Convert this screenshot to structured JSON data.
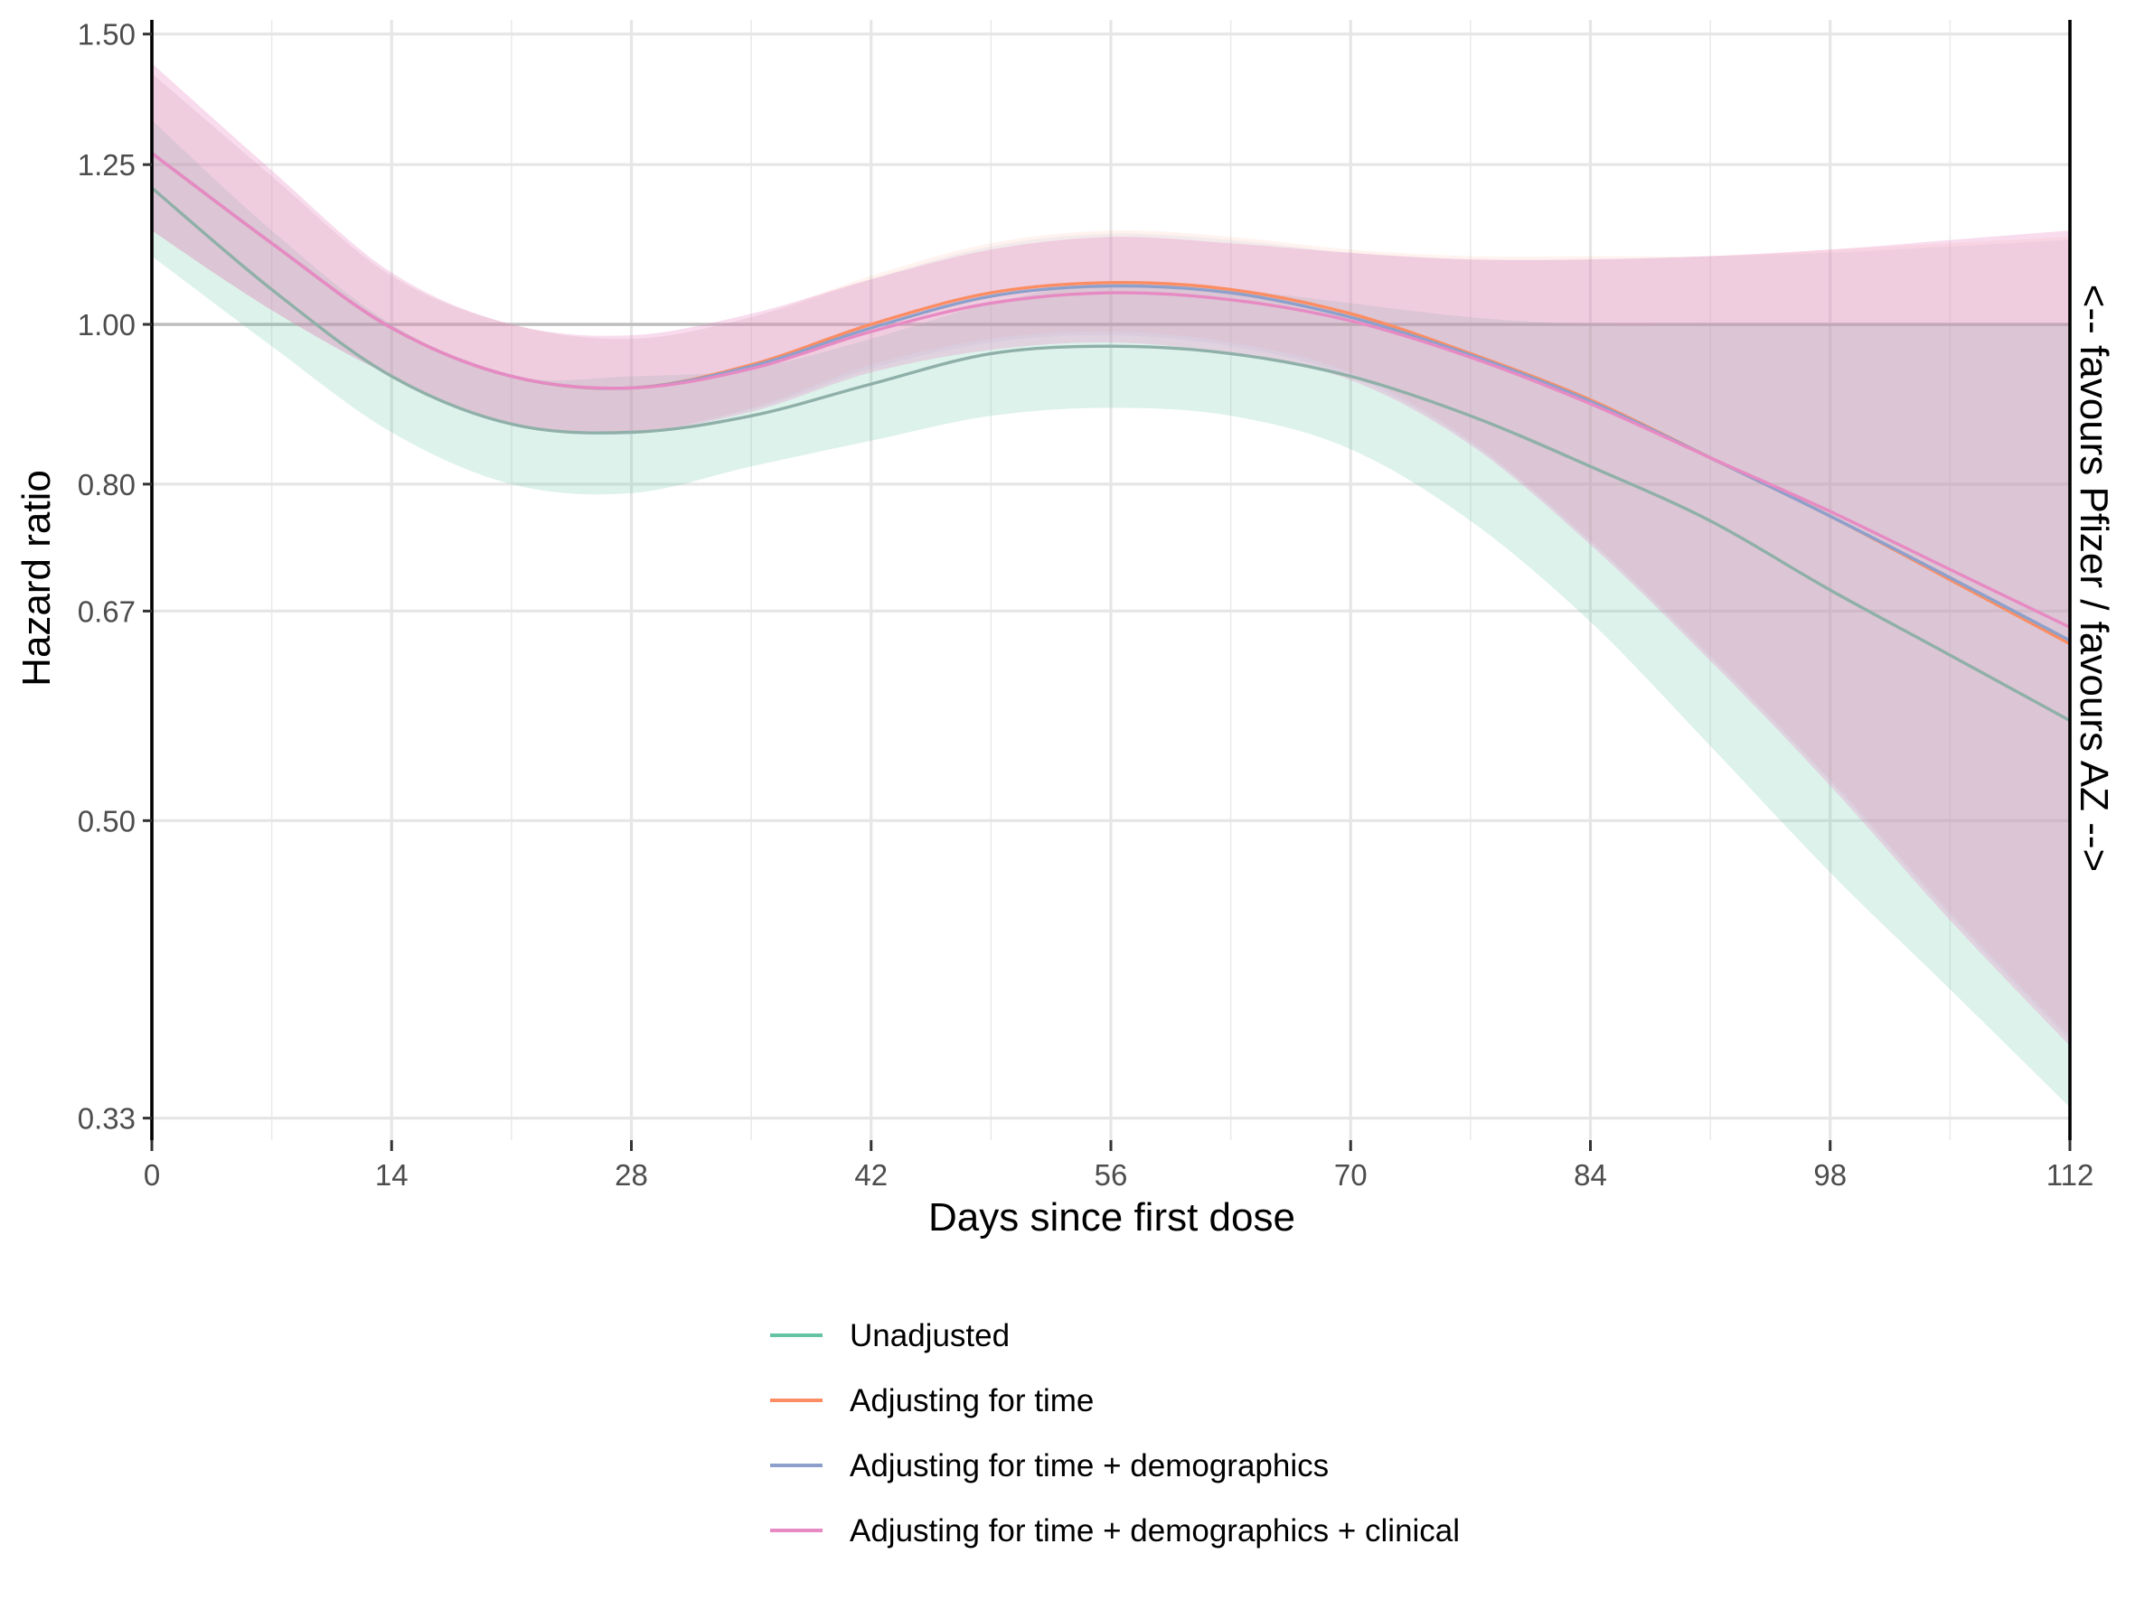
{
  "chart_data": {
    "type": "line",
    "title": "",
    "xlabel": "Days since first dose",
    "ylabel": "Hazard ratio",
    "secondary_label": "<--  favours Pfizer  /  favours AZ  -->",
    "x_scale": "linear",
    "y_scale": "log",
    "xlim": [
      0,
      112
    ],
    "ylim": [
      0.32,
      1.53
    ],
    "x_ticks": [
      0,
      14,
      28,
      42,
      56,
      70,
      84,
      98,
      112
    ],
    "x_tick_labels": [
      "0",
      "14",
      "28",
      "42",
      "56",
      "70",
      "84",
      "98",
      "112"
    ],
    "y_ticks": [
      0.33,
      0.5,
      0.67,
      0.8,
      1.0,
      1.25,
      1.5
    ],
    "y_tick_labels": [
      "0.33",
      "0.50",
      "0.67",
      "0.80",
      "1.00",
      "1.25",
      "1.50"
    ],
    "reference_line_y": 1.0,
    "grid": true,
    "legend_position": "bottom",
    "x": [
      0,
      7,
      14,
      21,
      28,
      35,
      42,
      49,
      56,
      63,
      70,
      77,
      84,
      91,
      98,
      105,
      112
    ],
    "series": [
      {
        "name": "Unadjusted",
        "color": "#66c2a5",
        "line_color": "#8fb0a8",
        "values": [
          1.21,
          1.05,
          0.93,
          0.87,
          0.86,
          0.88,
          0.92,
          0.96,
          0.97,
          0.96,
          0.93,
          0.88,
          0.82,
          0.76,
          0.69,
          0.63,
          0.575
        ],
        "lower": [
          1.1,
          0.97,
          0.86,
          0.8,
          0.79,
          0.82,
          0.85,
          0.88,
          0.89,
          0.88,
          0.84,
          0.76,
          0.66,
          0.555,
          0.465,
          0.395,
          0.335
        ],
        "upper": [
          1.33,
          1.14,
          1.0,
          0.93,
          0.93,
          0.94,
          0.98,
          1.03,
          1.06,
          1.05,
          1.03,
          1.01,
          1.0,
          1.0,
          1.0,
          1.0,
          1.0
        ]
      },
      {
        "name": "Adjusting for time",
        "color": "#fc8d62",
        "values": [
          1.27,
          1.12,
          0.995,
          0.93,
          0.915,
          0.945,
          1.0,
          1.045,
          1.06,
          1.05,
          1.015,
          0.96,
          0.9,
          0.83,
          0.765,
          0.7,
          0.64
        ],
        "lower": [
          1.14,
          1.02,
          0.93,
          0.87,
          0.86,
          0.89,
          0.945,
          0.98,
          0.99,
          0.975,
          0.935,
          0.85,
          0.74,
          0.63,
          0.53,
          0.44,
          0.37
        ],
        "upper": [
          1.42,
          1.23,
          1.07,
          1.0,
          0.98,
          1.01,
          1.07,
          1.12,
          1.14,
          1.13,
          1.11,
          1.1,
          1.1,
          1.1,
          1.11,
          1.12,
          1.13
        ]
      },
      {
        "name": "Adjusting for time + demographics",
        "color": "#8da0cb",
        "values": [
          1.27,
          1.12,
          0.995,
          0.93,
          0.915,
          0.943,
          0.995,
          1.04,
          1.055,
          1.045,
          1.01,
          0.958,
          0.898,
          0.83,
          0.765,
          0.702,
          0.643
        ],
        "lower": [
          1.14,
          1.02,
          0.93,
          0.87,
          0.86,
          0.888,
          0.94,
          0.975,
          0.985,
          0.97,
          0.93,
          0.848,
          0.738,
          0.628,
          0.528,
          0.438,
          0.368
        ],
        "upper": [
          1.42,
          1.23,
          1.07,
          1.0,
          0.98,
          1.01,
          1.065,
          1.115,
          1.135,
          1.125,
          1.105,
          1.095,
          1.095,
          1.1,
          1.105,
          1.115,
          1.125
        ]
      },
      {
        "name": "Adjusting for time + demographics + clinical",
        "color": "#e78ac3",
        "values": [
          1.27,
          1.12,
          0.995,
          0.93,
          0.915,
          0.94,
          0.99,
          1.03,
          1.045,
          1.035,
          1.005,
          0.955,
          0.895,
          0.83,
          0.77,
          0.71,
          0.655
        ],
        "lower": [
          1.14,
          1.02,
          0.93,
          0.87,
          0.86,
          0.885,
          0.935,
          0.965,
          0.975,
          0.96,
          0.925,
          0.845,
          0.735,
          0.625,
          0.525,
          0.435,
          0.365
        ],
        "upper": [
          1.44,
          1.24,
          1.075,
          1.0,
          0.985,
          1.015,
          1.065,
          1.11,
          1.13,
          1.12,
          1.105,
          1.095,
          1.095,
          1.1,
          1.11,
          1.125,
          1.14
        ]
      }
    ]
  }
}
